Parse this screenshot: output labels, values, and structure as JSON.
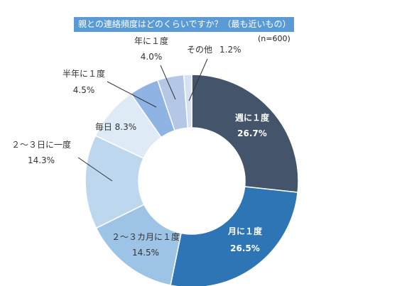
{
  "title": "親との連絡頻度はどのくらいですか？（最も近いもの）",
  "sample": "(n=600)",
  "chart_data": {
    "type": "donut",
    "title": "親との連絡頻度はどのくらいですか？（最も近いもの）",
    "note": "(n=600)",
    "categories": [
      "週に１度",
      "月に１度",
      "２～３カ月に１度",
      "２～３日に一度",
      "毎日",
      "半年に１度",
      "年に１度",
      "その他"
    ],
    "values": [
      26.7,
      26.5,
      14.5,
      14.3,
      8.3,
      4.5,
      4.0,
      1.2
    ],
    "value_labels": [
      "26.7%",
      "26.5%",
      "14.5%",
      "14.3%",
      "8.3%",
      "4.5%",
      "4.0%",
      "1.2%"
    ],
    "colors": [
      "#44546a",
      "#2e75b6",
      "#9dc3e6",
      "#bdd7ee",
      "#deebf7",
      "#8fb4e3",
      "#b4c7e7",
      "#d6e2f3"
    ],
    "direction": "clockwise from top"
  }
}
